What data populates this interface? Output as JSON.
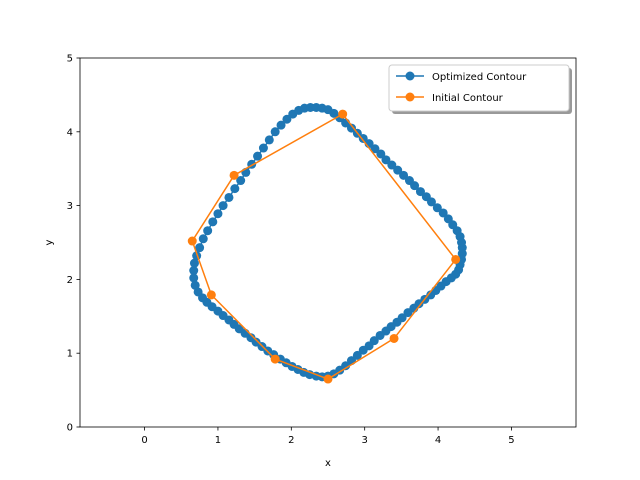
{
  "chart_data": {
    "type": "line",
    "title": "",
    "xlabel": "x",
    "ylabel": "y",
    "xlim": [
      -0.88,
      5.88
    ],
    "ylim": [
      0,
      5
    ],
    "xticks": [
      0,
      1,
      2,
      3,
      4,
      5
    ],
    "yticks": [
      0,
      1,
      2,
      3,
      4,
      5
    ],
    "grid": false,
    "legend_position": "top-right",
    "series": [
      {
        "name": "Optimized Contour",
        "color": "#1f77b4",
        "marker": "circle",
        "closed": true,
        "x": [
          4.33,
          4.33,
          4.32,
          4.3,
          4.28,
          4.24,
          4.18,
          4.11,
          4.04,
          3.97,
          3.9,
          3.82,
          3.74,
          3.67,
          3.59,
          3.51,
          3.44,
          3.36,
          3.29,
          3.21,
          3.13,
          3.06,
          2.98,
          2.9,
          2.82,
          2.74,
          2.66,
          2.58,
          2.5,
          2.42,
          2.34,
          2.25,
          2.17,
          2.09,
          2.01,
          1.93,
          1.85,
          1.76,
          1.68,
          1.6,
          1.52,
          1.45,
          1.37,
          1.29,
          1.22,
          1.15,
          1.07,
          1.0,
          0.92,
          0.85,
          0.79,
          0.73,
          0.69,
          0.67,
          0.67,
          0.68,
          0.71,
          0.75,
          0.8,
          0.86,
          0.93,
          1.0,
          1.07,
          1.15,
          1.23,
          1.31,
          1.38,
          1.46,
          1.54,
          1.62,
          1.7,
          1.78,
          1.86,
          1.94,
          2.02,
          2.1,
          2.18,
          2.26,
          2.34,
          2.42,
          2.5,
          2.58,
          2.66,
          2.74,
          2.82,
          2.9,
          2.98,
          3.06,
          3.14,
          3.22,
          3.29,
          3.37,
          3.45,
          3.53,
          3.61,
          3.68,
          3.76,
          3.84,
          3.91,
          3.99,
          4.07,
          4.14,
          4.2,
          4.26,
          4.3,
          4.32
        ],
        "y": [
          2.43,
          2.35,
          2.27,
          2.2,
          2.13,
          2.07,
          2.02,
          1.97,
          1.91,
          1.85,
          1.79,
          1.73,
          1.67,
          1.61,
          1.55,
          1.48,
          1.42,
          1.36,
          1.3,
          1.24,
          1.17,
          1.1,
          1.04,
          0.97,
          0.9,
          0.83,
          0.77,
          0.72,
          0.69,
          0.68,
          0.69,
          0.71,
          0.74,
          0.78,
          0.82,
          0.87,
          0.92,
          0.98,
          1.03,
          1.09,
          1.15,
          1.21,
          1.27,
          1.33,
          1.39,
          1.45,
          1.51,
          1.57,
          1.63,
          1.69,
          1.75,
          1.83,
          1.92,
          2.02,
          2.12,
          2.22,
          2.32,
          2.43,
          2.55,
          2.66,
          2.78,
          2.89,
          3.0,
          3.11,
          3.23,
          3.34,
          3.45,
          3.56,
          3.67,
          3.78,
          3.89,
          4.0,
          4.09,
          4.17,
          4.24,
          4.29,
          4.32,
          4.33,
          4.33,
          4.32,
          4.3,
          4.25,
          4.19,
          4.12,
          4.05,
          3.98,
          3.91,
          3.84,
          3.77,
          3.7,
          3.62,
          3.55,
          3.48,
          3.41,
          3.34,
          3.27,
          3.19,
          3.12,
          3.05,
          2.97,
          2.9,
          2.82,
          2.74,
          2.66,
          2.58,
          2.5
        ]
      },
      {
        "name": "Initial Contour",
        "color": "#ff7f0e",
        "marker": "circle",
        "closed": true,
        "x": [
          4.24,
          3.4,
          2.5,
          1.78,
          0.91,
          0.65,
          1.22,
          2.7
        ],
        "y": [
          2.27,
          1.2,
          0.65,
          0.92,
          1.79,
          2.52,
          3.41,
          4.24
        ]
      }
    ]
  }
}
